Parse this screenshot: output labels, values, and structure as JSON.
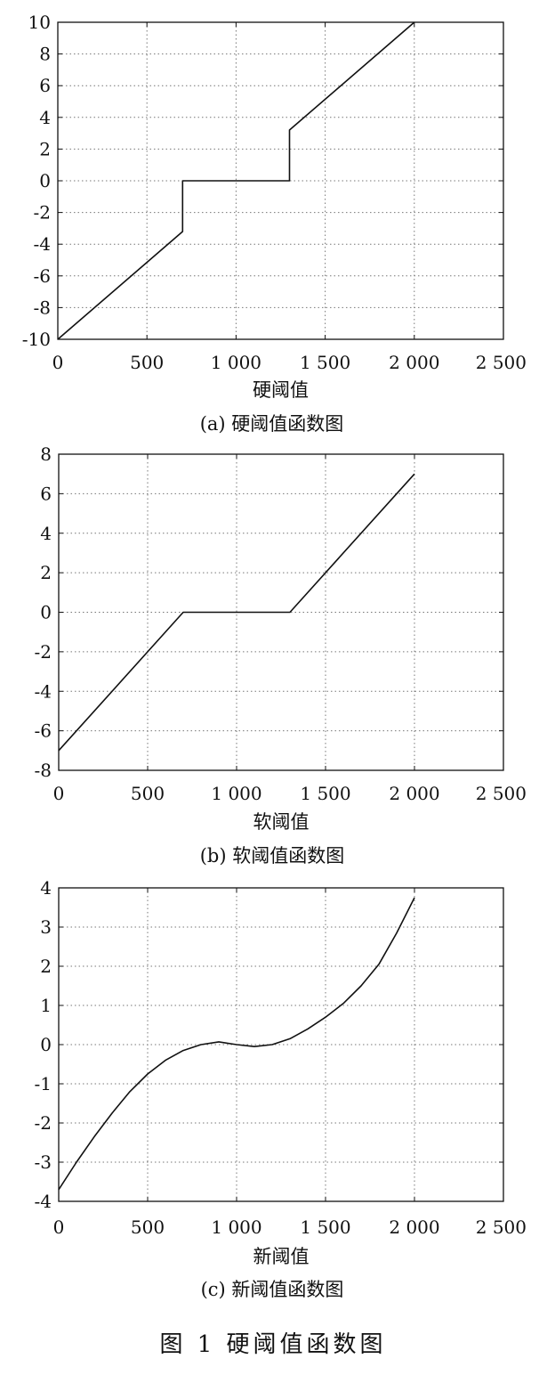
{
  "figure_caption": "图 1   硬阈值函数图",
  "chart_data": [
    {
      "type": "line",
      "caption": "(a)  硬阈值函数图",
      "xlabel": "硬阈值",
      "ylabel": "",
      "xlim": [
        0,
        2500
      ],
      "ylim": [
        -10,
        10
      ],
      "grid": true,
      "x_ticks": [
        "0",
        "500",
        "1 000",
        "1 500",
        "2 000",
        "2 500"
      ],
      "y_ticks": [
        "10",
        "8",
        "6",
        "4",
        "2",
        "0",
        "-2",
        "-4",
        "-6",
        "-8",
        "-10"
      ],
      "series": [
        {
          "x": [
            0,
            700,
            700,
            1300,
            1300,
            2000
          ],
          "y": [
            -10,
            -3.2,
            0,
            0,
            3.2,
            10
          ]
        }
      ]
    },
    {
      "type": "line",
      "caption": "(b)  软阈值函数图",
      "xlabel": "软阈值",
      "ylabel": "",
      "xlim": [
        0,
        2500
      ],
      "ylim": [
        -8,
        8
      ],
      "grid": true,
      "x_ticks": [
        "0",
        "500",
        "1 000",
        "1 500",
        "2 000",
        "2 500"
      ],
      "y_ticks": [
        "8",
        "6",
        "4",
        "2",
        "0",
        "-2",
        "-4",
        "-6",
        "-8"
      ],
      "series": [
        {
          "x": [
            0,
            700,
            1300,
            2000
          ],
          "y": [
            -7,
            0,
            0,
            7
          ]
        }
      ]
    },
    {
      "type": "line",
      "caption": "(c)  新阈值函数图",
      "xlabel": "新阈值",
      "ylabel": "",
      "xlim": [
        0,
        2500
      ],
      "ylim": [
        -4,
        4
      ],
      "grid": true,
      "x_ticks": [
        "0",
        "500",
        "1 000",
        "1 500",
        "2 000",
        "2 500"
      ],
      "y_ticks": [
        "4",
        "3",
        "2",
        "1",
        "0",
        "-1",
        "-2",
        "-3",
        "-4"
      ],
      "series": [
        {
          "x": [
            0,
            100,
            200,
            300,
            400,
            500,
            600,
            700,
            800,
            900,
            1000,
            1100,
            1200,
            1300,
            1400,
            1500,
            1600,
            1700,
            1800,
            1900,
            2000
          ],
          "y": [
            -3.7,
            -3.0,
            -2.35,
            -1.75,
            -1.2,
            -0.75,
            -0.4,
            -0.15,
            0.0,
            0.07,
            0.0,
            -0.05,
            0.0,
            0.15,
            0.4,
            0.7,
            1.05,
            1.5,
            2.05,
            2.85,
            3.75
          ]
        }
      ]
    }
  ]
}
